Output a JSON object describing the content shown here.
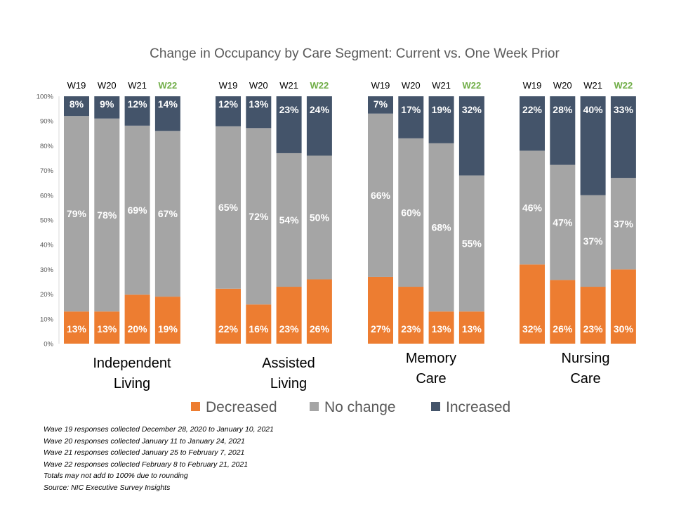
{
  "chart_data": {
    "type": "bar",
    "stacked": true,
    "title": "Change in Occupancy by Care Segment: Current vs. One Week Prior",
    "groups": [
      "Independent Living",
      "Assisted Living",
      "Memory Care",
      "Nursing Care"
    ],
    "waves": [
      "W19",
      "W20",
      "W21",
      "W22"
    ],
    "highlight_wave": "W22",
    "y_ticks": [
      "0%",
      "10%",
      "20%",
      "30%",
      "40%",
      "50%",
      "60%",
      "70%",
      "80%",
      "90%",
      "100%"
    ],
    "ylim": [
      0,
      100
    ],
    "grid": false,
    "legend_position": "bottom",
    "series": [
      {
        "name": "Decreased",
        "color": "#ED7D31",
        "values": [
          [
            13,
            13,
            20,
            19
          ],
          [
            22,
            16,
            23,
            26
          ],
          [
            27,
            23,
            13,
            13
          ],
          [
            32,
            26,
            23,
            30
          ]
        ]
      },
      {
        "name": "No change",
        "color": "#A5A5A5",
        "values": [
          [
            79,
            78,
            69,
            67
          ],
          [
            65,
            72,
            54,
            50
          ],
          [
            66,
            60,
            68,
            55
          ],
          [
            46,
            47,
            37,
            37
          ]
        ]
      },
      {
        "name": "Increased",
        "color": "#44546A",
        "values": [
          [
            8,
            9,
            12,
            14
          ],
          [
            12,
            13,
            23,
            24
          ],
          [
            7,
            17,
            19,
            32
          ],
          [
            22,
            28,
            40,
            33
          ]
        ]
      }
    ],
    "label_suffix": "%"
  },
  "highlight_color": "#70AD47",
  "notes": [
    "Wave 19 responses collected  December 28, 2020 to January 10, 2021",
    "Wave 20 responses collected  January 11 to January 24, 2021",
    "Wave 21 responses collected  January 25 to February 7, 2021",
    "Wave 22 responses collected  February 8 to February 21, 2021",
    "Totals may not add to 100% due to rounding",
    "Source: NIC Executive Survey Insights"
  ]
}
